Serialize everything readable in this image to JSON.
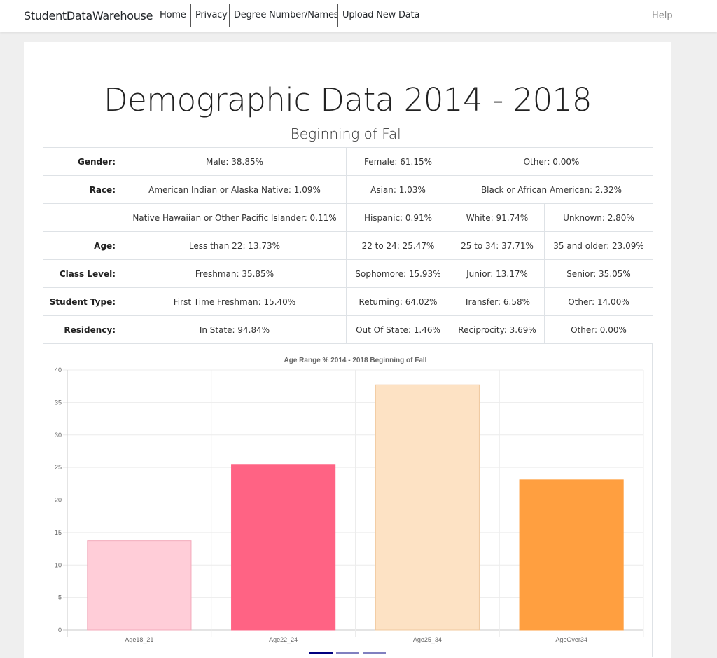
{
  "nav": {
    "brand": "StudentDataWarehouse",
    "links": [
      "Home",
      "Privacy",
      "Degree Number/Names",
      "Upload New Data"
    ],
    "help": "Help"
  },
  "page": {
    "title": "Demographic Data 2014 - 2018",
    "subtitle": "Beginning of Fall"
  },
  "table": {
    "gender": {
      "label": "Gender:",
      "male": "Male: 38.85%",
      "female": "Female: 61.15%",
      "other": "Other: 0.00%"
    },
    "race": {
      "label": "Race:",
      "american_indian": "American Indian or Alaska Native: 1.09%",
      "asian": "Asian: 1.03%",
      "black": "Black or African American: 2.32%",
      "hawaiian": "Native Hawaiian or Other Pacific Islander: 0.11%",
      "hispanic": "Hispanic: 0.91%",
      "white": "White: 91.74%",
      "unknown": "Unknown: 2.80%"
    },
    "age": {
      "label": "Age:",
      "c1": "Less than 22: 13.73%",
      "c2": "22 to 24: 25.47%",
      "c3": "25 to 34: 37.71%",
      "c4": "35 and older: 23.09%"
    },
    "class_level": {
      "label": "Class Level:",
      "c1": "Freshman: 35.85%",
      "c2": "Sophomore: 15.93%",
      "c3": "Junior: 13.17%",
      "c4": "Senior: 35.05%"
    },
    "student_type": {
      "label": "Student Type:",
      "c1": "First Time Freshman: 15.40%",
      "c2": "Returning: 64.02%",
      "c3": "Transfer: 6.58%",
      "c4": "Other: 14.00%"
    },
    "residency": {
      "label": "Residency:",
      "c1": "In State: 94.84%",
      "c2": "Out Of State: 1.46%",
      "c3": "Reciprocity: 3.69%",
      "c4": "Other: 0.00%"
    }
  },
  "chart_data": {
    "type": "bar",
    "title": "Age Range % 2014 - 2018 Beginning of Fall",
    "categories": [
      "Age18_21",
      "Age22_24",
      "Age25_34",
      "AgeOver34"
    ],
    "values": [
      13.73,
      25.47,
      37.71,
      23.09
    ],
    "colors": [
      "#ffcdd8",
      "#ff6384",
      "#fde2c4",
      "#ff9f40"
    ],
    "border_colors": [
      "#f3a9ba",
      "#ff6384",
      "#f0c89e",
      "#ff9f40"
    ],
    "ylim": [
      0,
      40
    ],
    "yticks": [
      0,
      5,
      10,
      15,
      20,
      25,
      30,
      35,
      40
    ],
    "grid": true,
    "legend": "none"
  },
  "carousel": {
    "active_color": "#000080",
    "inactive_color": "#8080c0"
  }
}
